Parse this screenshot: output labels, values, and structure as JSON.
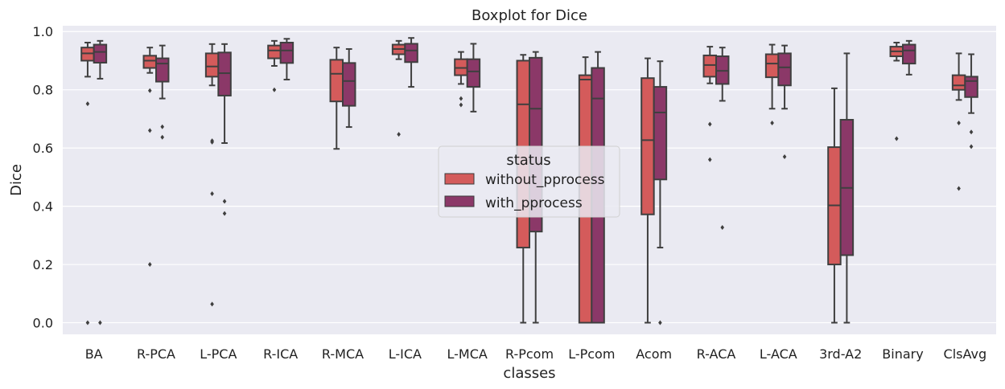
{
  "chart_data": {
    "type": "boxplot",
    "title": "Boxplot for Dice",
    "xlabel": "classes",
    "ylabel": "Dice",
    "ylim": [
      -0.04,
      1.02
    ],
    "yticks": [
      "0.0",
      "0.2",
      "0.4",
      "0.6",
      "0.8",
      "1.0"
    ],
    "grid": true,
    "legend_placement": "center",
    "legend_title": "status",
    "categories": [
      "BA",
      "R-PCA",
      "L-PCA",
      "R-ICA",
      "R-MCA",
      "L-ICA",
      "L-MCA",
      "R-Pcom",
      "L-Pcom",
      "Acom",
      "R-ACA",
      "L-ACA",
      "3rd-A2",
      "Binary",
      "ClsAvg"
    ],
    "series": [
      {
        "name": "without_pprocess",
        "color": "#d45b5b",
        "boxes": [
          {
            "whislo": 0.845,
            "q1": 0.9,
            "median": 0.925,
            "q3": 0.945,
            "whishi": 0.962,
            "fliers": [
              0.752,
              0.0
            ]
          },
          {
            "whislo": 0.858,
            "q1": 0.875,
            "median": 0.9,
            "q3": 0.917,
            "whishi": 0.945,
            "fliers": [
              0.797,
              0.66,
              0.2
            ]
          },
          {
            "whislo": 0.815,
            "q1": 0.845,
            "median": 0.88,
            "q3": 0.925,
            "whishi": 0.957,
            "fliers": [
              0.625,
              0.62,
              0.443,
              0.064
            ]
          },
          {
            "whislo": 0.882,
            "q1": 0.908,
            "median": 0.935,
            "q3": 0.952,
            "whishi": 0.968,
            "fliers": [
              0.8
            ]
          },
          {
            "whislo": 0.597,
            "q1": 0.76,
            "median": 0.855,
            "q3": 0.903,
            "whishi": 0.945,
            "fliers": []
          },
          {
            "whislo": 0.905,
            "q1": 0.922,
            "median": 0.94,
            "q3": 0.955,
            "whishi": 0.968,
            "fliers": [
              0.647
            ]
          },
          {
            "whislo": 0.82,
            "q1": 0.85,
            "median": 0.875,
            "q3": 0.905,
            "whishi": 0.93,
            "fliers": [
              0.77,
              0.748
            ]
          },
          {
            "whislo": 0.0,
            "q1": 0.258,
            "median": 0.75,
            "q3": 0.9,
            "whishi": 0.92,
            "fliers": []
          },
          {
            "whislo": 0.0,
            "q1": 0.0,
            "median": 0.835,
            "q3": 0.85,
            "whishi": 0.912,
            "fliers": []
          },
          {
            "whislo": 0.0,
            "q1": 0.372,
            "median": 0.627,
            "q3": 0.84,
            "whishi": 0.908,
            "fliers": []
          },
          {
            "whislo": 0.822,
            "q1": 0.845,
            "median": 0.885,
            "q3": 0.918,
            "whishi": 0.948,
            "fliers": [
              0.682,
              0.56
            ]
          },
          {
            "whislo": 0.735,
            "q1": 0.843,
            "median": 0.89,
            "q3": 0.922,
            "whishi": 0.955,
            "fliers": [
              0.686
            ]
          },
          {
            "whislo": 0.0,
            "q1": 0.2,
            "median": 0.403,
            "q3": 0.603,
            "whishi": 0.805,
            "fliers": []
          },
          {
            "whislo": 0.9,
            "q1": 0.915,
            "median": 0.932,
            "q3": 0.948,
            "whishi": 0.962,
            "fliers": [
              0.632
            ]
          },
          {
            "whislo": 0.765,
            "q1": 0.8,
            "median": 0.815,
            "q3": 0.85,
            "whishi": 0.925,
            "fliers": [
              0.686,
              0.461
            ]
          }
        ]
      },
      {
        "name": "with_pprocess",
        "color": "#8b3868",
        "boxes": [
          {
            "whislo": 0.838,
            "q1": 0.893,
            "median": 0.93,
            "q3": 0.955,
            "whishi": 0.968,
            "fliers": [
              0.0
            ]
          },
          {
            "whislo": 0.77,
            "q1": 0.828,
            "median": 0.89,
            "q3": 0.908,
            "whishi": 0.952,
            "fliers": [
              0.673,
              0.637
            ]
          },
          {
            "whislo": 0.617,
            "q1": 0.78,
            "median": 0.857,
            "q3": 0.928,
            "whishi": 0.957,
            "fliers": [
              0.417,
              0.375
            ]
          },
          {
            "whislo": 0.835,
            "q1": 0.892,
            "median": 0.935,
            "q3": 0.962,
            "whishi": 0.975,
            "fliers": []
          },
          {
            "whislo": 0.672,
            "q1": 0.745,
            "median": 0.83,
            "q3": 0.892,
            "whishi": 0.94,
            "fliers": []
          },
          {
            "whislo": 0.81,
            "q1": 0.895,
            "median": 0.935,
            "q3": 0.958,
            "whishi": 0.978,
            "fliers": []
          },
          {
            "whislo": 0.725,
            "q1": 0.81,
            "median": 0.863,
            "q3": 0.905,
            "whishi": 0.958,
            "fliers": []
          },
          {
            "whislo": 0.0,
            "q1": 0.313,
            "median": 0.735,
            "q3": 0.91,
            "whishi": 0.93,
            "fliers": []
          },
          {
            "whislo": 0.0,
            "q1": 0.0,
            "median": 0.77,
            "q3": 0.875,
            "whishi": 0.93,
            "fliers": []
          },
          {
            "whislo": 0.258,
            "q1": 0.492,
            "median": 0.722,
            "q3": 0.81,
            "whishi": 0.898,
            "fliers": [
              0.0
            ]
          },
          {
            "whislo": 0.762,
            "q1": 0.82,
            "median": 0.865,
            "q3": 0.915,
            "whishi": 0.945,
            "fliers": [
              0.327
            ]
          },
          {
            "whislo": 0.735,
            "q1": 0.815,
            "median": 0.877,
            "q3": 0.925,
            "whishi": 0.952,
            "fliers": [
              0.57
            ]
          },
          {
            "whislo": 0.0,
            "q1": 0.232,
            "median": 0.463,
            "q3": 0.697,
            "whishi": 0.925,
            "fliers": []
          },
          {
            "whislo": 0.852,
            "q1": 0.89,
            "median": 0.935,
            "q3": 0.955,
            "whishi": 0.968,
            "fliers": []
          },
          {
            "whislo": 0.72,
            "q1": 0.775,
            "median": 0.83,
            "q3": 0.845,
            "whishi": 0.922,
            "fliers": [
              0.655,
              0.605
            ]
          }
        ]
      }
    ]
  }
}
